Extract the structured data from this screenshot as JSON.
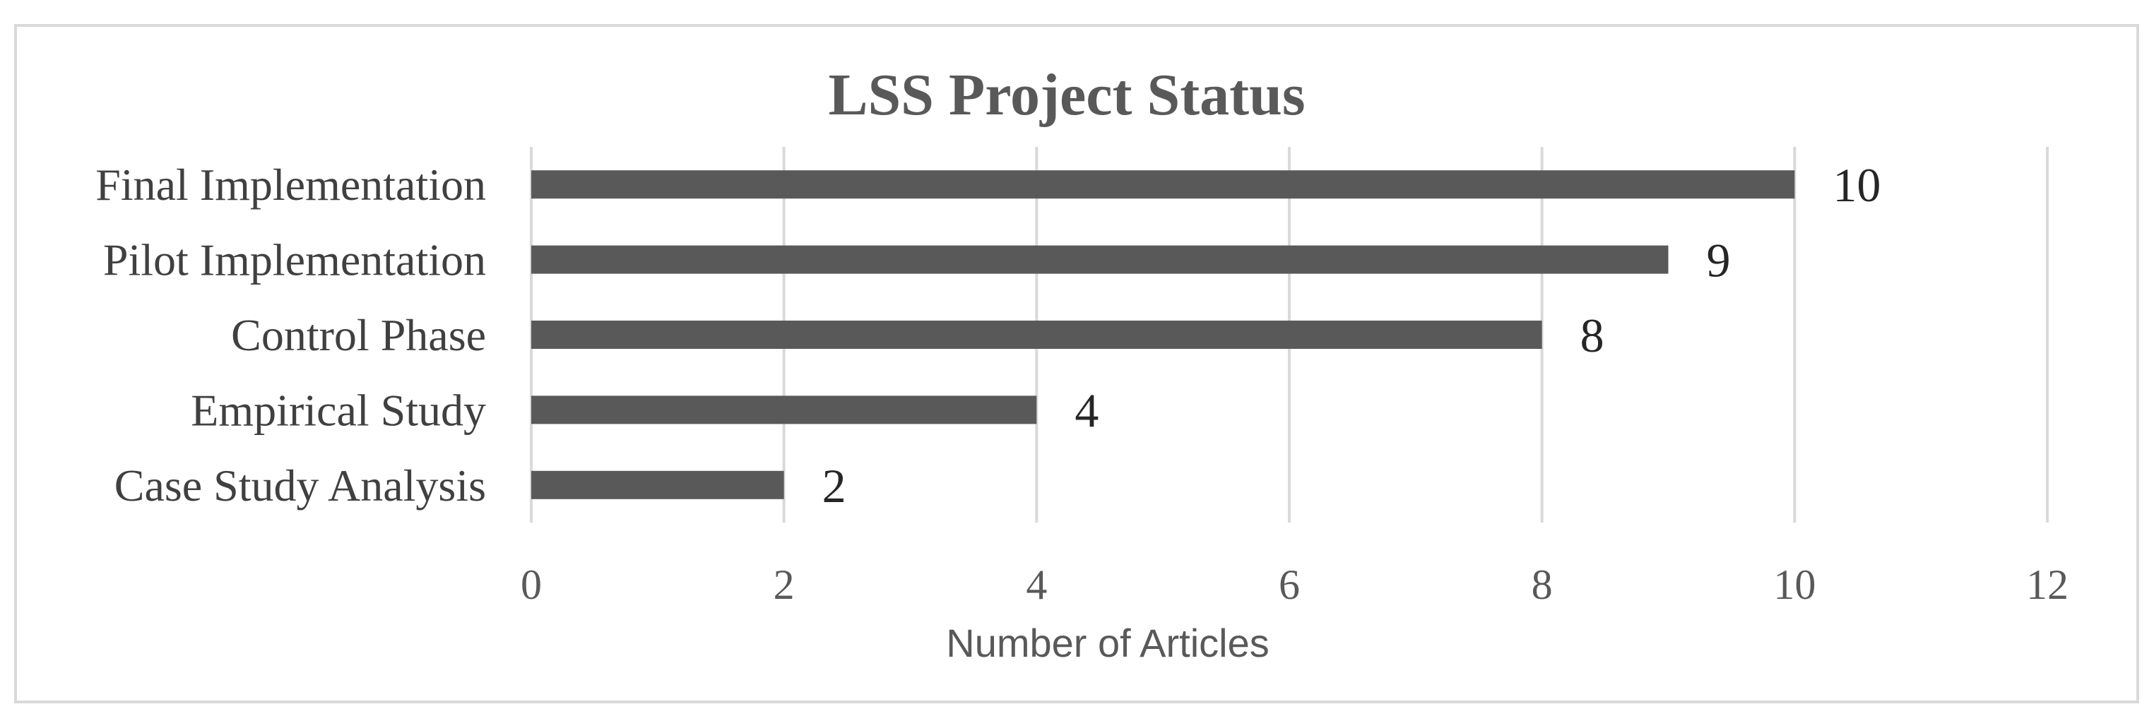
{
  "chart_data": {
    "type": "bar",
    "orientation": "horizontal",
    "title": "LSS Project Status",
    "xlabel": "Number of Articles",
    "ylabel": "",
    "categories": [
      "Final Implementation",
      "Pilot Implementation",
      "Control Phase",
      "Empirical Study",
      "Case Study Analysis"
    ],
    "values": [
      10,
      9,
      8,
      4,
      2
    ],
    "xlim": [
      0,
      12
    ],
    "ticks": [
      "0",
      "2",
      "4",
      "6",
      "8",
      "10",
      "12"
    ],
    "data_labels": [
      "10",
      "9",
      "8",
      "4",
      "2"
    ],
    "grid": true,
    "legend": "none",
    "colors": {
      "bar": "#595959",
      "grid": "#d9d9d9",
      "frame": "#d9d9d9"
    }
  }
}
